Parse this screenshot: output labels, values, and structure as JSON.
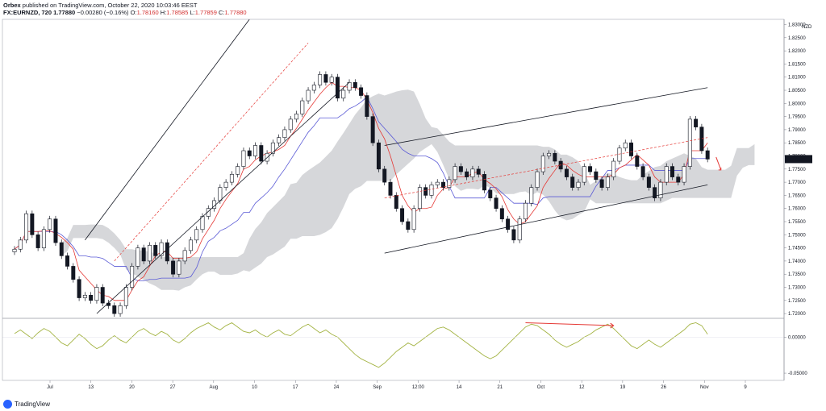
{
  "header": {
    "author": "Orbex",
    "published": "published on TradingView.com, October 22, 2020 10:03:46 EEST",
    "symbol": "FX:EURNZD, 720",
    "change_value": "−0.00280 (−0.16%)",
    "open_label": "O:",
    "open_value": "1.78160",
    "high_label": "H:",
    "high_value": "1.78585",
    "low_label": "L:",
    "low_value": "1.77859",
    "close_label": "C:",
    "close_value": "1.77880"
  },
  "footer": {
    "brand": "TradingView"
  },
  "chart_data": [
    {
      "type": "candlestick",
      "symbol": "FX:EURNZD",
      "interval": "720",
      "currency_label": "NZD",
      "last_price": "1.77880",
      "ylim": [
        1.7185,
        1.832
      ],
      "y_tick_labels": [
        "1.72000",
        "1.72500",
        "1.73000",
        "1.73500",
        "1.74000",
        "1.74500",
        "1.75000",
        "1.75500",
        "1.76000",
        "1.76500",
        "1.77000",
        "1.77500",
        "1.78000",
        "1.78500",
        "1.79000",
        "1.79500",
        "1.80000",
        "1.80500",
        "1.81000",
        "1.81500",
        "1.82000",
        "1.82500",
        "1.83000"
      ],
      "x_tick_labels": [
        "Jul",
        "13",
        "20",
        "27",
        "Aug",
        "10",
        "17",
        "24",
        "Sep",
        "12:00",
        "14",
        "21",
        "Oct",
        "12",
        "19",
        "26",
        "Nov",
        "9"
      ],
      "overlays": [
        "Ichimoku cloud (grey)",
        "conversion line (red)",
        "base line (blue)"
      ],
      "closes": [
        1.7445,
        1.748,
        1.758,
        1.75,
        1.745,
        1.752,
        1.756,
        1.747,
        1.742,
        1.738,
        1.733,
        1.726,
        1.727,
        1.725,
        1.73,
        1.724,
        1.723,
        1.72,
        1.723,
        1.73,
        1.738,
        1.745,
        1.74,
        1.746,
        1.742,
        1.747,
        1.74,
        1.735,
        1.74,
        1.744,
        1.748,
        1.752,
        1.757,
        1.76,
        1.763,
        1.768,
        1.77,
        1.773,
        1.776,
        1.782,
        1.78,
        1.784,
        1.778,
        1.781,
        1.785,
        1.787,
        1.79,
        1.794,
        1.796,
        1.801,
        1.805,
        1.807,
        1.811,
        1.808,
        1.81,
        1.802,
        1.805,
        1.808,
        1.806,
        1.803,
        1.795,
        1.785,
        1.775,
        1.77,
        1.765,
        1.76,
        1.755,
        1.752,
        1.76,
        1.768,
        1.765,
        1.769,
        1.77,
        1.768,
        1.771,
        1.776,
        1.774,
        1.772,
        1.775,
        1.773,
        1.767,
        1.764,
        1.76,
        1.756,
        1.752,
        1.748,
        1.756,
        1.762,
        1.768,
        1.774,
        1.78,
        1.781,
        1.778,
        1.775,
        1.772,
        1.768,
        1.77,
        1.776,
        1.774,
        1.771,
        1.768,
        1.772,
        1.778,
        1.783,
        1.785,
        1.78,
        1.776,
        1.772,
        1.768,
        1.764,
        1.77,
        1.776,
        1.772,
        1.77,
        1.776,
        1.794,
        1.791,
        1.782,
        1.7788
      ],
      "channels": [
        {
          "name": "rising channel upper",
          "from": [
            "Jul 13",
            1.748
          ],
          "to": [
            "Aug 10",
            1.832
          ]
        },
        {
          "name": "rising channel lower",
          "from": [
            "Jul 14",
            1.72
          ],
          "to": [
            "Aug 24",
            1.808
          ]
        },
        {
          "name": "ascending channel upper",
          "from": [
            "Sep 1",
            1.784
          ],
          "to": [
            "Oct 23",
            1.806
          ]
        },
        {
          "name": "ascending channel lower",
          "from": [
            "Sep 1",
            1.743
          ],
          "to": [
            "Oct 23",
            1.769
          ]
        }
      ]
    },
    {
      "type": "line",
      "name": "oscillator",
      "ylim": [
        -0.06,
        0.025
      ],
      "y_tick_labels": [
        "0.00000",
        "-0.05000"
      ],
      "values": [
        0.005,
        0.01,
        0.004,
        -0.002,
        0.006,
        0.012,
        0.008,
        0.0,
        -0.008,
        -0.012,
        -0.004,
        0.004,
        -0.002,
        -0.01,
        -0.016,
        -0.012,
        -0.004,
        0.002,
        -0.004,
        -0.008,
        0.0,
        0.008,
        0.012,
        0.006,
        0.002,
        0.008,
        0.004,
        -0.004,
        -0.008,
        -0.002,
        0.006,
        0.012,
        0.016,
        0.02,
        0.014,
        0.01,
        0.016,
        0.02,
        0.014,
        0.008,
        0.006,
        0.01,
        0.004,
        0.0,
        0.006,
        0.01,
        0.004,
        0.002,
        0.008,
        0.014,
        0.018,
        0.012,
        0.006,
        0.01,
        0.004,
        0.0,
        -0.008,
        -0.016,
        -0.024,
        -0.03,
        -0.034,
        -0.038,
        -0.042,
        -0.036,
        -0.028,
        -0.02,
        -0.014,
        -0.008,
        -0.012,
        -0.006,
        0.0,
        0.006,
        0.012,
        0.014,
        0.01,
        0.004,
        -0.002,
        -0.008,
        -0.014,
        -0.02,
        -0.026,
        -0.03,
        -0.026,
        -0.018,
        -0.01,
        -0.002,
        0.006,
        0.014,
        0.018,
        0.016,
        0.01,
        0.004,
        -0.004,
        -0.01,
        -0.014,
        -0.01,
        -0.006,
        0.0,
        0.004,
        0.01,
        0.014,
        0.018,
        0.012,
        0.004,
        -0.004,
        -0.012,
        -0.016,
        -0.01,
        -0.004,
        -0.01,
        -0.014,
        -0.008,
        -0.002,
        0.004,
        0.01,
        0.018,
        0.02,
        0.016,
        0.004
      ],
      "annotation": "red arrow over oscillator peaks"
    }
  ]
}
